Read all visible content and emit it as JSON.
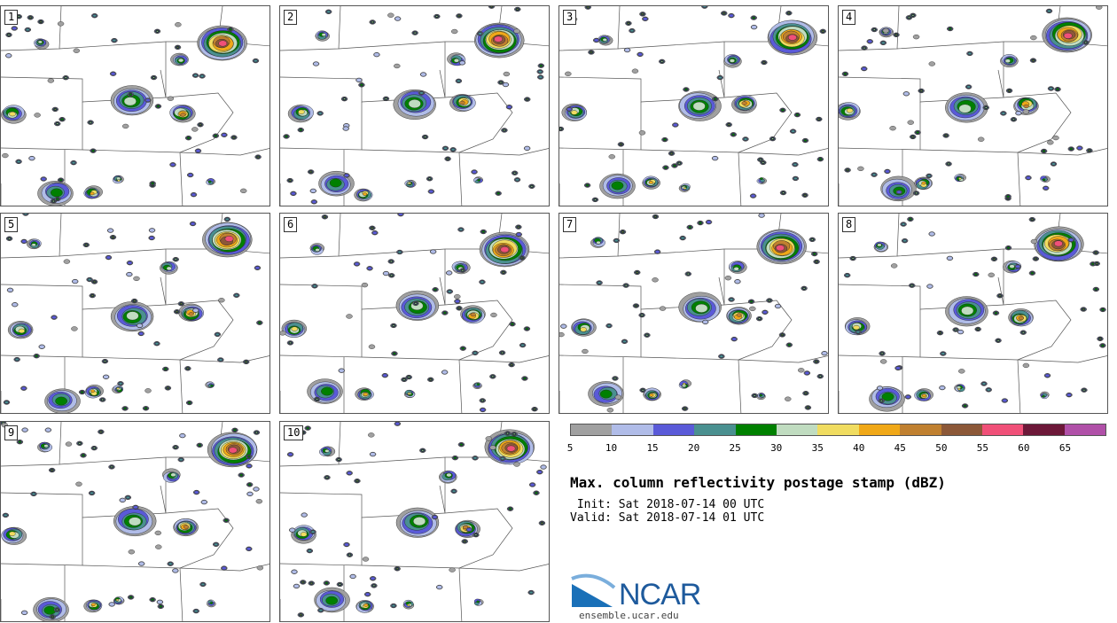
{
  "panels": [
    {
      "label": "1"
    },
    {
      "label": "2"
    },
    {
      "label": "3"
    },
    {
      "label": "4"
    },
    {
      "label": "5"
    },
    {
      "label": "6"
    },
    {
      "label": "7"
    },
    {
      "label": "8"
    },
    {
      "label": "9"
    },
    {
      "label": "10"
    }
  ],
  "colorbar": {
    "colors": [
      "#a0a0a0",
      "#b0bce8",
      "#5a5ad8",
      "#4a9090",
      "#008000",
      "#c0dcc0",
      "#f0dc60",
      "#f0a818",
      "#c08030",
      "#8c5838",
      "#f05078",
      "#6c1838",
      "#b050a8"
    ],
    "ticks": [
      "5",
      "10",
      "15",
      "20",
      "25",
      "30",
      "35",
      "40",
      "45",
      "50",
      "55",
      "60",
      "65"
    ]
  },
  "title": "Max. column reflectivity postage stamp (dBZ)",
  "init": " Init: Sat 2018-07-14 00 UTC",
  "valid": "Valid: Sat 2018-07-14 01 UTC",
  "logo": {
    "text": "NCAR"
  },
  "site": "ensemble.ucar.edu"
}
